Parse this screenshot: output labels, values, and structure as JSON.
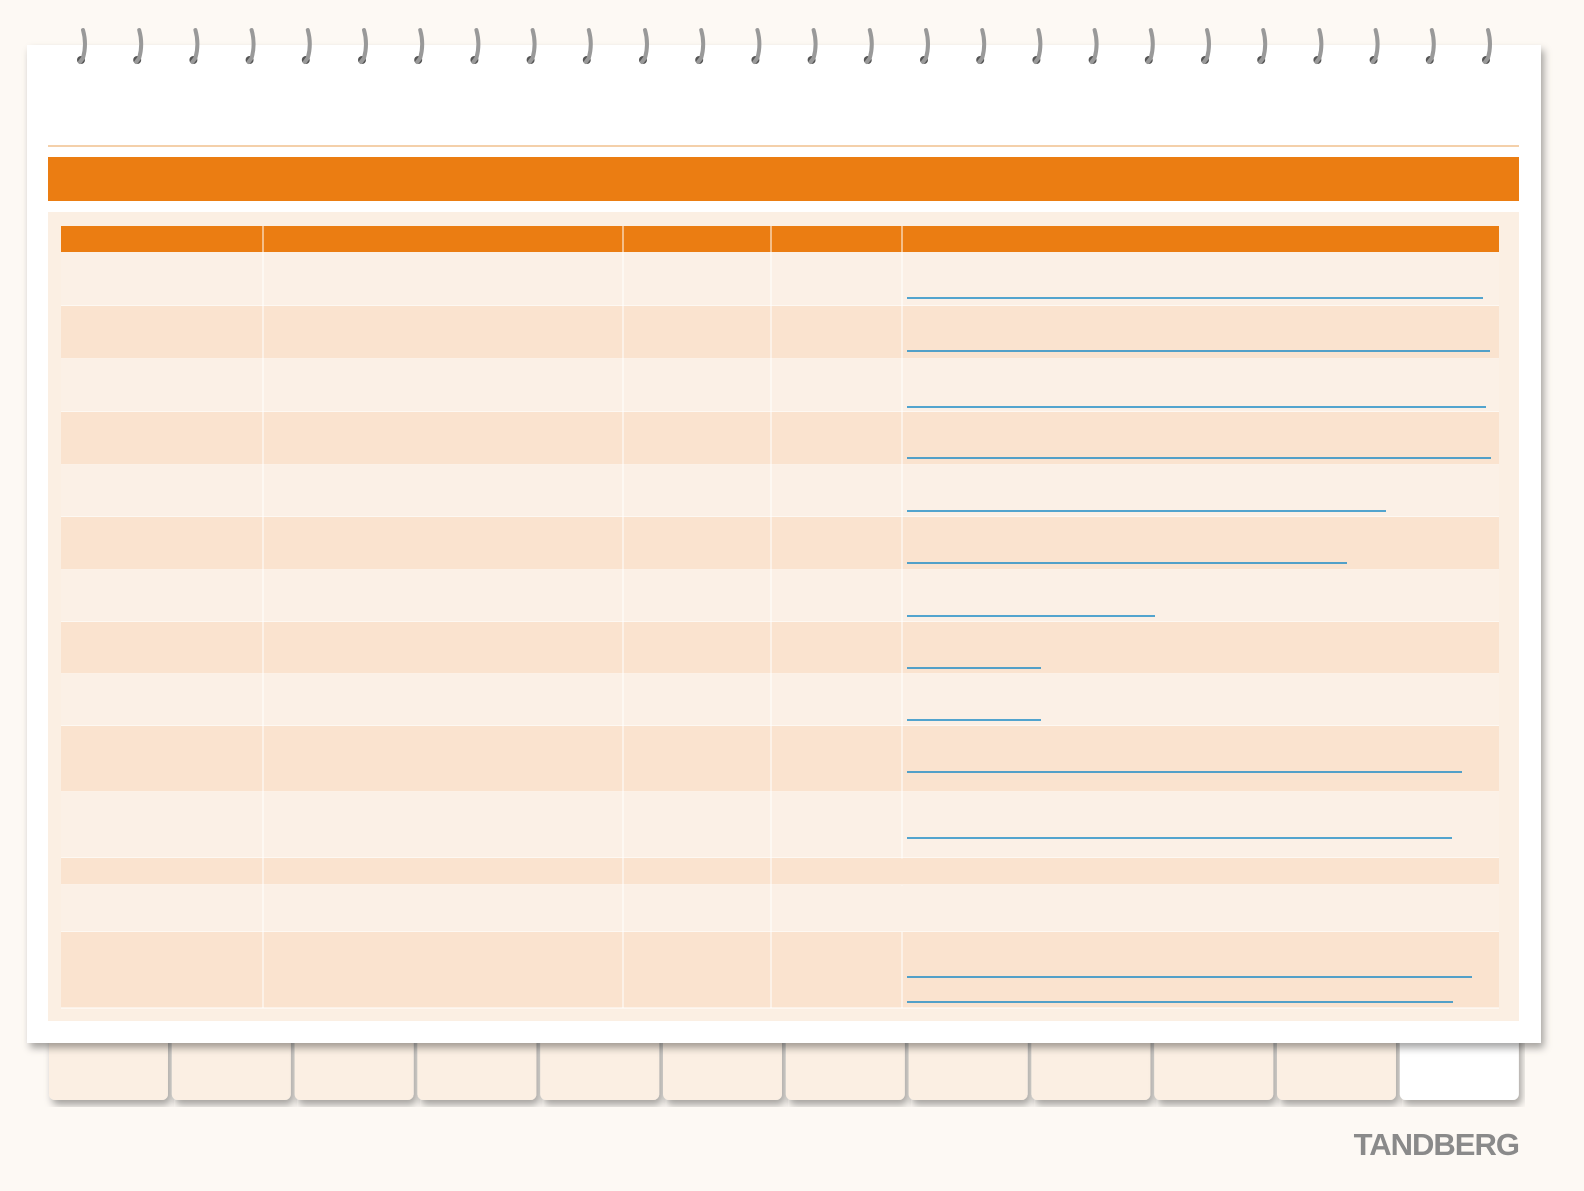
{
  "footer": {
    "logo": "TANDBERG"
  }
}
